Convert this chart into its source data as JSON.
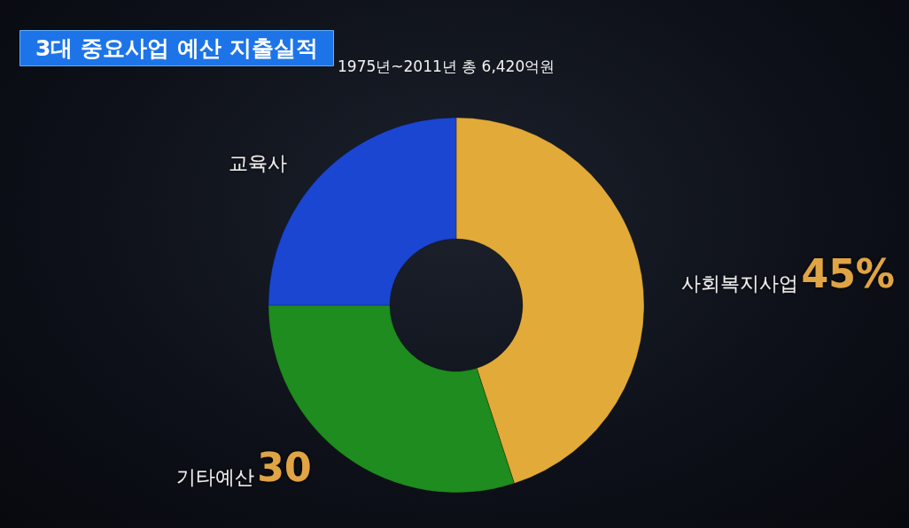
{
  "chart_data": {
    "type": "donut",
    "title": "3대 중요사업 예산 지출실적",
    "subtitle": "1975년~2011년 총 6,420억원",
    "categories": [
      "사회복지사업",
      "기타예산",
      "교육사"
    ],
    "values": [
      45,
      30,
      25
    ],
    "colors": [
      "#e2aa38",
      "#1e8c1e",
      "#1a46d2"
    ],
    "value_labels": [
      "45%",
      "30",
      null
    ]
  }
}
